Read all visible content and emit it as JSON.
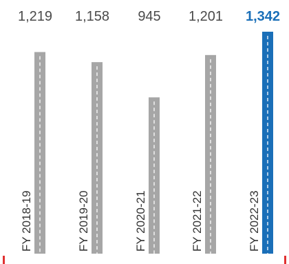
{
  "chart_data": {
    "type": "bar",
    "categories": [
      "FY 2018-19",
      "FY 2019-20",
      "FY 2020-21",
      "FY 2021-22",
      "FY 2022-23"
    ],
    "value_labels": [
      "1,219",
      "1,158",
      "945",
      "1,201",
      "1,342"
    ],
    "values": [
      1219,
      1158,
      945,
      1201,
      1342
    ],
    "highlight_index": 4,
    "ylim": [
      0,
      1342
    ],
    "grid": false,
    "legend": "none",
    "title": "",
    "xlabel": "",
    "ylabel": "",
    "colors": {
      "bar": "#a6a6a6",
      "highlight": "#1a6fb8",
      "value_label": "#4a4a4a",
      "highlight_label": "#1a6fb8",
      "category_label": "#333333",
      "dash": "#ffffff",
      "edge_marker": "#e03131"
    }
  }
}
